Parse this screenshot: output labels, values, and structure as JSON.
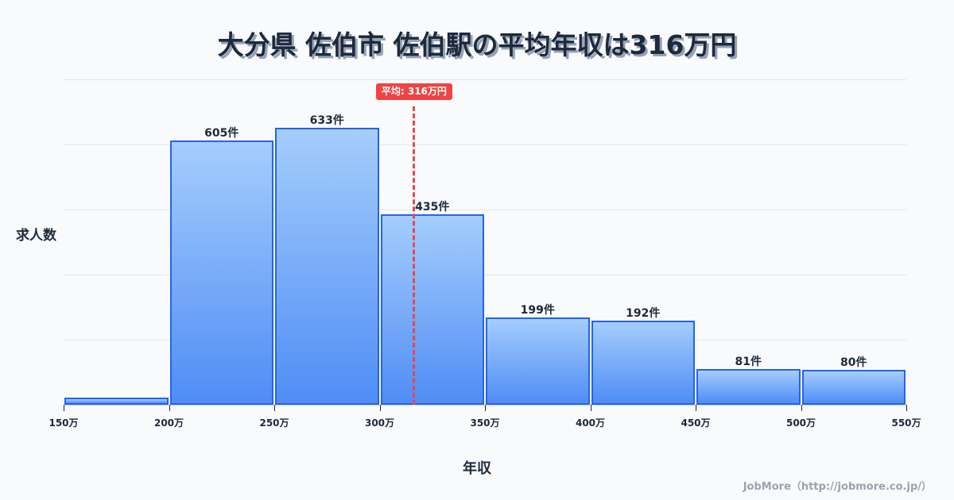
{
  "title": "大分県 佐伯市 佐伯駅の平均年収は316万円",
  "y_axis_label": "求人数",
  "x_axis_label": "年収",
  "average_badge": "平均: 316万円",
  "credit": "JobMore（http://jobmore.co.jp/）",
  "colors": {
    "bar_border": "#2563eb",
    "bar_fill_top": "#a5cdfc",
    "bar_fill_bottom": "#4f8df5",
    "average_line": "#ef4444",
    "background": "#f8fafc"
  },
  "chart_data": {
    "type": "bar",
    "subtype": "histogram",
    "title": "大分県 佐伯市 佐伯駅の平均年収は316万円",
    "xlabel": "年収",
    "ylabel": "求人数",
    "bin_edges": [
      150,
      200,
      250,
      300,
      350,
      400,
      450,
      500,
      550
    ],
    "tick_labels": [
      "150万",
      "200万",
      "250万",
      "300万",
      "350万",
      "400万",
      "450万",
      "500万",
      "550万"
    ],
    "categories": [
      "150-200万",
      "200-250万",
      "250-300万",
      "300-350万",
      "350-400万",
      "400-450万",
      "450-500万",
      "500-550万"
    ],
    "values": [
      16,
      605,
      633,
      435,
      199,
      192,
      81,
      80
    ],
    "value_labels": [
      "",
      "605件",
      "633件",
      "435件",
      "199件",
      "192件",
      "81件",
      "80件"
    ],
    "average": 316,
    "average_label": "平均: 316万円",
    "ylim": [
      0,
      744
    ],
    "grid": true,
    "y_ticks_visible": false,
    "legend": "none"
  }
}
